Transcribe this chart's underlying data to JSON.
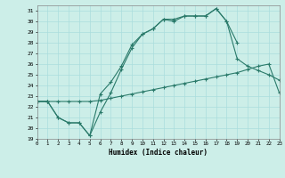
{
  "xlabel": "Humidex (Indice chaleur)",
  "bg_color": "#cceee8",
  "grid_color": "#aadddd",
  "line_color": "#2a7a6a",
  "xlim": [
    0,
    23
  ],
  "ylim": [
    19,
    31.5
  ],
  "yticks": [
    19,
    20,
    21,
    22,
    23,
    24,
    25,
    26,
    27,
    28,
    29,
    30,
    31
  ],
  "xticks": [
    0,
    1,
    2,
    3,
    4,
    5,
    6,
    7,
    8,
    9,
    10,
    11,
    12,
    13,
    14,
    15,
    16,
    17,
    18,
    19,
    20,
    21,
    22,
    23
  ],
  "line1_x": [
    0,
    1,
    2,
    3,
    4,
    5,
    6,
    7,
    8,
    9,
    10,
    11,
    12,
    13,
    14,
    15,
    16,
    17,
    18,
    19,
    20,
    21,
    22,
    23
  ],
  "line1_y": [
    22.5,
    22.5,
    22.5,
    22.5,
    22.5,
    22.5,
    22.6,
    22.8,
    23.0,
    23.2,
    23.4,
    23.6,
    23.8,
    24.0,
    24.2,
    24.4,
    24.6,
    24.8,
    25.0,
    25.2,
    25.5,
    25.8,
    26.0,
    23.3
  ],
  "line2_x": [
    0,
    1,
    2,
    3,
    4,
    5,
    6,
    7,
    8,
    9,
    10,
    11,
    12,
    13,
    14,
    15,
    16,
    17,
    18,
    19,
    20,
    21,
    22,
    23
  ],
  "line2_y": [
    22.5,
    22.5,
    21.0,
    20.5,
    20.5,
    19.3,
    21.5,
    23.3,
    25.5,
    27.5,
    28.8,
    29.3,
    30.2,
    30.0,
    30.5,
    30.5,
    30.5,
    31.2,
    30.0,
    26.5,
    25.8,
    25.4,
    25.0,
    24.5
  ],
  "line3_x": [
    0,
    1,
    2,
    3,
    4,
    5,
    6,
    7,
    8,
    9,
    10,
    11,
    12,
    13,
    14,
    15,
    16,
    17,
    18,
    19
  ],
  "line3_y": [
    22.5,
    22.5,
    21.0,
    20.5,
    20.5,
    19.3,
    23.2,
    24.3,
    25.8,
    27.8,
    28.8,
    29.3,
    30.2,
    30.2,
    30.5,
    30.5,
    30.5,
    31.2,
    30.0,
    28.0
  ]
}
